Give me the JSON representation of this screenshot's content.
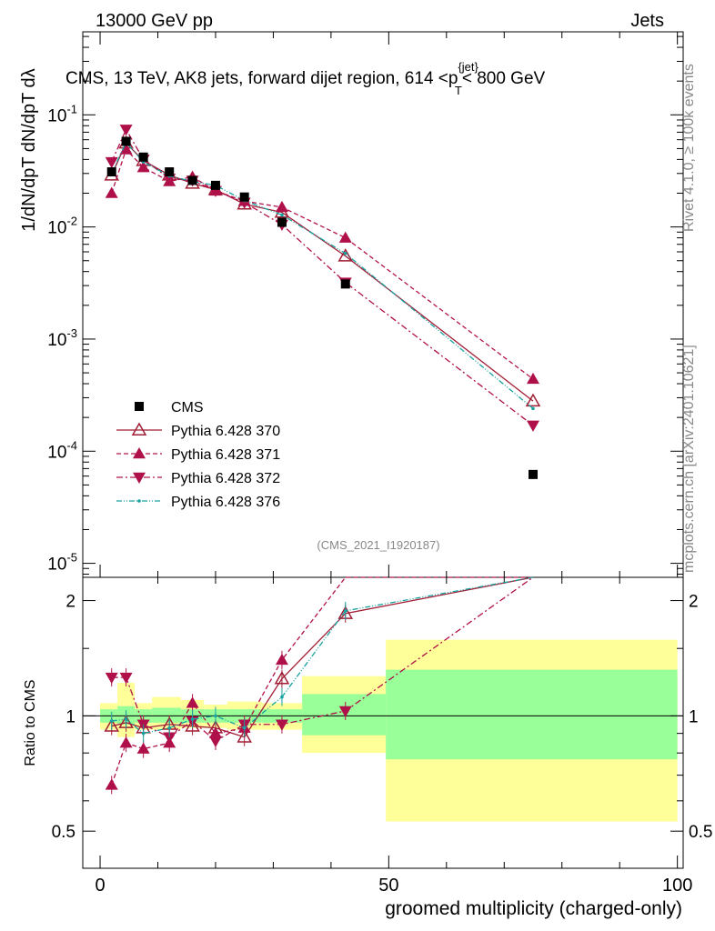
{
  "header": {
    "left": "13000 GeV pp",
    "right": "Jets"
  },
  "chart_data": {
    "type": "line",
    "title": "CMS, 13 TeV, AK8 jets, forward dijet region, 614 <p",
    "title_sup": "{jet}",
    "title_sub": "T",
    "title_tail": "< 800 GeV",
    "ylabel_main": "1/dN/dpT dN/dpT dλ",
    "ylabel_ratio": "Ratio to CMS",
    "xlabel": "groomed multiplicity (charged-only)",
    "xlim": [
      -3,
      101
    ],
    "ylim": [
      7.5e-06,
      0.55
    ],
    "ratio_ylim": [
      0.4,
      2.3
    ],
    "x_ticks": [
      "0",
      "50",
      "100"
    ],
    "y_ticks_main": [
      "10",
      "10",
      "10",
      "10",
      "10"
    ],
    "y_ticks_main_exp": [
      "-1",
      "-2",
      "-3",
      "-4",
      "-5"
    ],
    "y_ticks_ratio": [
      "0.5",
      "1",
      "2"
    ],
    "right_label_top": "Rivet 4.1.0, ≥ 100k events",
    "right_label_bottom": "mcplots.cern.ch [arXiv:2401.10621]",
    "analysis_id": "(CMS_2021_I1920187)",
    "x": [
      2,
      4.5,
      7.5,
      12,
      16,
      20,
      25,
      31.5,
      42.5,
      75
    ],
    "bin_edges": [
      0,
      3,
      6,
      9,
      14,
      18,
      22,
      28,
      35,
      49.5,
      100
    ],
    "series": [
      {
        "name": "CMS",
        "color": "#000000",
        "style": "data",
        "values": [
          0.031,
          0.058,
          0.042,
          0.031,
          0.026,
          0.0235,
          0.0185,
          0.011,
          0.0031,
          6.2e-05
        ]
      },
      {
        "name": "Pythia 6.428 370",
        "color": "#a11e35",
        "style": "solid",
        "marker": "open-triangle-up",
        "values": [
          0.029,
          0.056,
          0.039,
          0.029,
          0.0245,
          0.0215,
          0.016,
          0.0135,
          0.0055,
          0.00028
        ]
      },
      {
        "name": "Pythia 6.428 371",
        "color": "#b0104a",
        "style": "dashed",
        "marker": "triangle-up",
        "values": [
          0.02,
          0.049,
          0.034,
          0.0255,
          0.028,
          0.021,
          0.017,
          0.015,
          0.008,
          0.00044
        ]
      },
      {
        "name": "Pythia 6.428 372",
        "color": "#b0104a",
        "style": "dashdot",
        "marker": "triangle-down",
        "values": [
          0.038,
          0.074,
          0.04,
          0.027,
          0.026,
          0.021,
          0.0165,
          0.0105,
          0.0032,
          0.00017
        ]
      },
      {
        "name": "Pythia 6.428 376",
        "color": "#17a2a0",
        "style": "dashdotdot",
        "marker": "dot",
        "values": [
          0.03,
          0.057,
          0.038,
          0.0285,
          0.0255,
          0.0235,
          0.0172,
          0.0128,
          0.0058,
          0.00024
        ]
      }
    ],
    "ratio_series": [
      {
        "name": "Pythia 6.428 370",
        "values": [
          0.94,
          0.96,
          0.93,
          0.95,
          0.94,
          0.93,
          0.88,
          1.25,
          1.85,
          4.5
        ]
      },
      {
        "name": "Pythia 6.428 371",
        "values": [
          0.66,
          0.85,
          0.82,
          0.85,
          1.08,
          0.9,
          0.93,
          1.4,
          2.6,
          7.0
        ]
      },
      {
        "name": "Pythia 6.428 372",
        "values": [
          1.26,
          1.26,
          0.95,
          0.88,
          0.97,
          0.86,
          0.95,
          0.95,
          1.03,
          2.75
        ]
      },
      {
        "name": "Pythia 6.428 376",
        "values": [
          0.97,
          0.98,
          0.9,
          0.93,
          0.98,
          1.0,
          0.93,
          1.12,
          1.88,
          3.9
        ]
      }
    ],
    "bands": {
      "yellow": [
        [
          0.92,
          1.08
        ],
        [
          0.88,
          1.22
        ],
        [
          0.92,
          1.08
        ],
        [
          0.92,
          1.12
        ],
        [
          0.93,
          1.1
        ],
        [
          0.93,
          1.07
        ],
        [
          0.92,
          1.09
        ],
        [
          0.92,
          1.08
        ],
        [
          0.8,
          1.27
        ],
        [
          0.53,
          1.58
        ]
      ],
      "green": [
        [
          0.96,
          1.04
        ],
        [
          0.95,
          1.06
        ],
        [
          0.96,
          1.04
        ],
        [
          0.96,
          1.05
        ],
        [
          0.96,
          1.04
        ],
        [
          0.96,
          1.04
        ],
        [
          0.96,
          1.04
        ],
        [
          0.96,
          1.04
        ],
        [
          0.89,
          1.14
        ],
        [
          0.77,
          1.32
        ]
      ]
    }
  }
}
